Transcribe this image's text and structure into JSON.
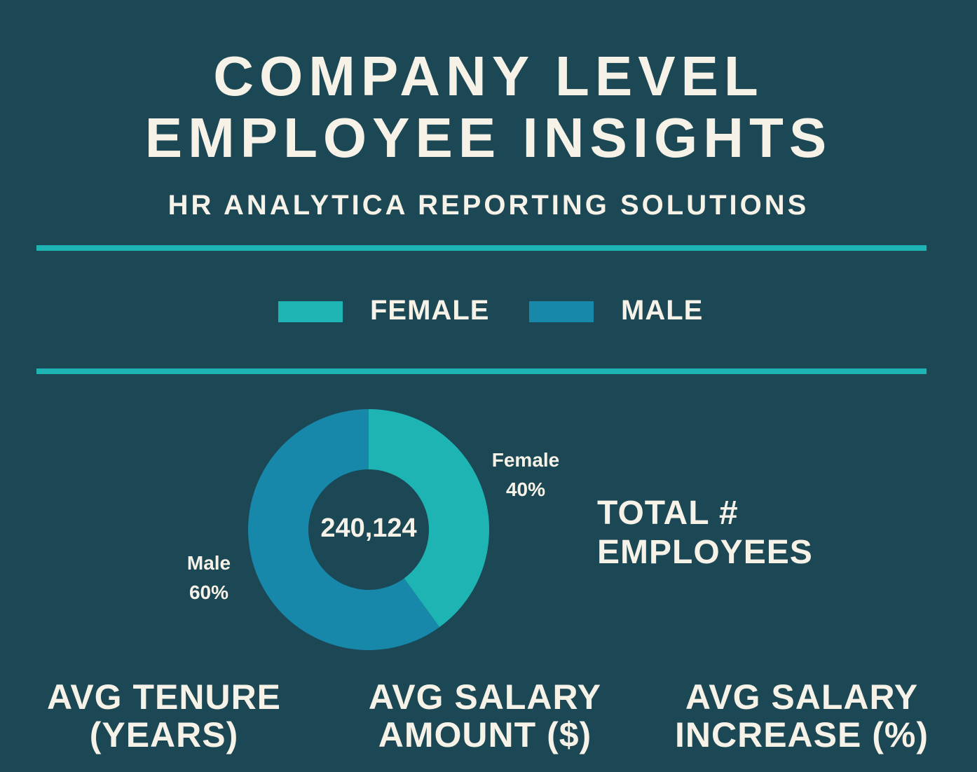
{
  "header": {
    "title_line_1": "COMPANY LEVEL",
    "title_line_2": "EMPLOYEE INSIGHTS",
    "subtitle": "HR ANALYTICA REPORTING SOLUTIONS"
  },
  "legend": [
    {
      "label": "FEMALE",
      "color": "#1fb4b4"
    },
    {
      "label": "MALE",
      "color": "#1787aa"
    }
  ],
  "chart_data": {
    "type": "pie",
    "variant": "donut",
    "center_value": "240,124",
    "slices": [
      {
        "name": "Female",
        "value": 40,
        "value_label": "40%",
        "color": "#1fb4b4"
      },
      {
        "name": "Male",
        "value": 60,
        "value_label": "60%",
        "color": "#1787aa"
      }
    ],
    "legend_position": "top-center"
  },
  "total_label": {
    "line_1": "TOTAL #",
    "line_2": "EMPLOYEES"
  },
  "metrics": [
    {
      "line_1": "AVG TENURE",
      "line_2": "(YEARS)"
    },
    {
      "line_1": "AVG SALARY",
      "line_2": "AMOUNT ($)"
    },
    {
      "line_1": "AVG SALARY",
      "line_2": "INCREASE (%)"
    }
  ],
  "colors": {
    "background": "#1c4754",
    "text": "#f6f2e7",
    "accent_rule": "#1fb4b4"
  }
}
